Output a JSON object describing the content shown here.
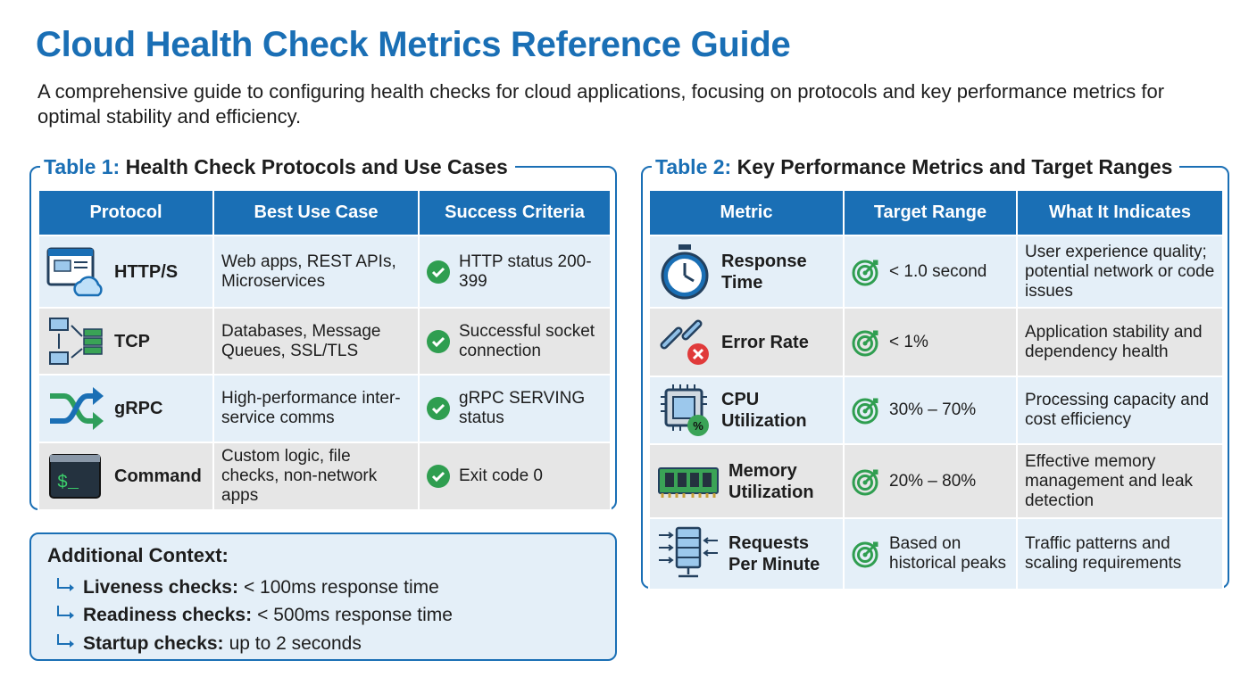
{
  "header": {
    "title": "Cloud Health Check Metrics Reference Guide",
    "subtitle": "A comprehensive guide to configuring health checks for cloud applications, focusing on protocols and key performance metrics for optimal stability and efficiency."
  },
  "table1": {
    "label": "Table 1:",
    "title": "Health Check Protocols and Use Cases",
    "columns": [
      "Protocol",
      "Best Use Case",
      "Success Criteria"
    ],
    "rows": [
      [
        "HTTP/S",
        "Web apps, REST APIs, Microservices",
        "HTTP status 200-399"
      ],
      [
        "TCP",
        "Databases, Message Queues, SSL/TLS",
        "Successful socket connection"
      ],
      [
        "gRPC",
        "High-performance inter-service comms",
        "gRPC SERVING status"
      ],
      [
        "Command",
        "Custom logic, file checks, non-network apps",
        "Exit code 0"
      ]
    ]
  },
  "table2": {
    "label": "Table 2:",
    "title": "Key Performance Metrics and Target Ranges",
    "columns": [
      "Metric",
      "Target Range",
      "What It Indicates"
    ],
    "rows": [
      [
        "Response Time",
        "< 1.0 second",
        "User experience quality; potential network or code issues"
      ],
      [
        "Error Rate",
        "< 1%",
        "Application stability and dependency health"
      ],
      [
        "CPU Utilization",
        "30% – 70%",
        "Processing capacity and cost efficiency"
      ],
      [
        "Memory Utilization",
        "20% – 80%",
        "Effective memory management and leak detection"
      ],
      [
        "Requests Per Minute",
        "Based on historical peaks",
        "Traffic patterns and scaling requirements"
      ]
    ]
  },
  "context": {
    "title": "Additional Context:",
    "items": [
      {
        "label": "Liveness checks:",
        "text": "< 100ms response time"
      },
      {
        "label": "Readiness checks:",
        "text": "< 500ms response time"
      },
      {
        "label": "Startup checks:",
        "text": "up to 2 seconds"
      }
    ]
  }
}
